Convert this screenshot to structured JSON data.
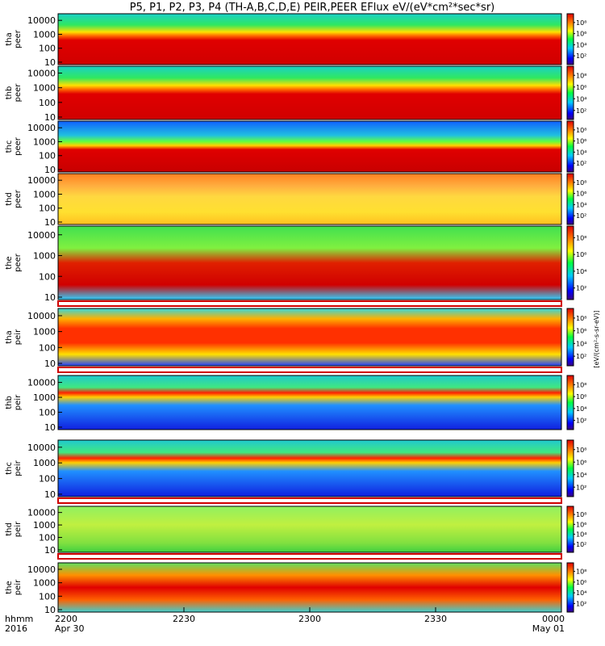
{
  "title": "P5, P1, P2, P3, P4 (TH-A,B,C,D,E) PEIR,PEER EFlux eV/(eV*cm²*sec*sr)",
  "axis_header": {
    "line1": "hhmm",
    "line2": "2016"
  },
  "chart_data": {
    "type": "heatmap",
    "title": "P5, P1, P2, P3, P4 (TH-A,B,C,D,E) PEIR,PEER EFlux eV/(eV*cm²*sec*sr)",
    "x_ticks": [
      {
        "value": "2200",
        "sub": "Apr 30"
      },
      {
        "value": "2230",
        "sub": ""
      },
      {
        "value": "2300",
        "sub": ""
      },
      {
        "value": "2330",
        "sub": ""
      },
      {
        "value": "0000",
        "sub": "May 01"
      }
    ],
    "y_scale": "log",
    "colorbar_scale": "log",
    "colorbar_label": "[eV/(cm²-s-sr-eV)]",
    "panels": [
      {
        "probe": "tha",
        "instrument": "peer",
        "y_ticks": [
          "10",
          "100",
          "1000",
          "10000"
        ],
        "cb_ticks": [
          "10²",
          "10⁴",
          "10⁶",
          "10⁸"
        ]
      },
      {
        "probe": "thb",
        "instrument": "peer",
        "y_ticks": [
          "10",
          "100",
          "1000",
          "10000"
        ],
        "cb_ticks": [
          "10²",
          "10⁴",
          "10⁶",
          "10⁸"
        ]
      },
      {
        "probe": "thc",
        "instrument": "peer",
        "y_ticks": [
          "10",
          "100",
          "1000",
          "10000"
        ],
        "cb_ticks": [
          "10²",
          "10⁴",
          "10⁶",
          "10⁸"
        ]
      },
      {
        "probe": "thd",
        "instrument": "peer",
        "y_ticks": [
          "10",
          "100",
          "1000",
          "10000"
        ],
        "cb_ticks": [
          "10²",
          "10⁴",
          "10⁶",
          "10⁸"
        ]
      },
      {
        "probe": "the",
        "instrument": "peer",
        "y_ticks": [
          "10",
          "100",
          "1000",
          "10000"
        ],
        "cb_ticks": [
          "10²",
          "10⁴",
          "10⁶",
          "10⁸"
        ]
      },
      {
        "probe": "tha",
        "instrument": "peir",
        "y_ticks": [
          "10",
          "100",
          "1000",
          "10000"
        ],
        "cb_ticks": [
          "10²",
          "10⁴",
          "10⁶",
          "10⁸"
        ]
      },
      {
        "probe": "thb",
        "instrument": "peir",
        "y_ticks": [
          "10",
          "100",
          "1000",
          "10000"
        ],
        "cb_ticks": [
          "10²",
          "10⁴",
          "10⁶",
          "10⁸"
        ]
      },
      {
        "probe": "thc",
        "instrument": "peir",
        "y_ticks": [
          "10",
          "100",
          "1000",
          "10000"
        ],
        "cb_ticks": [
          "10²",
          "10⁴",
          "10⁶",
          "10⁸"
        ]
      },
      {
        "probe": "thd",
        "instrument": "peir",
        "y_ticks": [
          "10",
          "100",
          "1000",
          "10000"
        ],
        "cb_ticks": [
          "10²",
          "10⁴",
          "10⁶",
          "10⁸"
        ]
      },
      {
        "probe": "the",
        "instrument": "peir",
        "y_ticks": [
          "10",
          "100",
          "1000",
          "10000"
        ],
        "cb_ticks": [
          "10²",
          "10⁴",
          "10⁶",
          "10⁸"
        ]
      }
    ]
  }
}
